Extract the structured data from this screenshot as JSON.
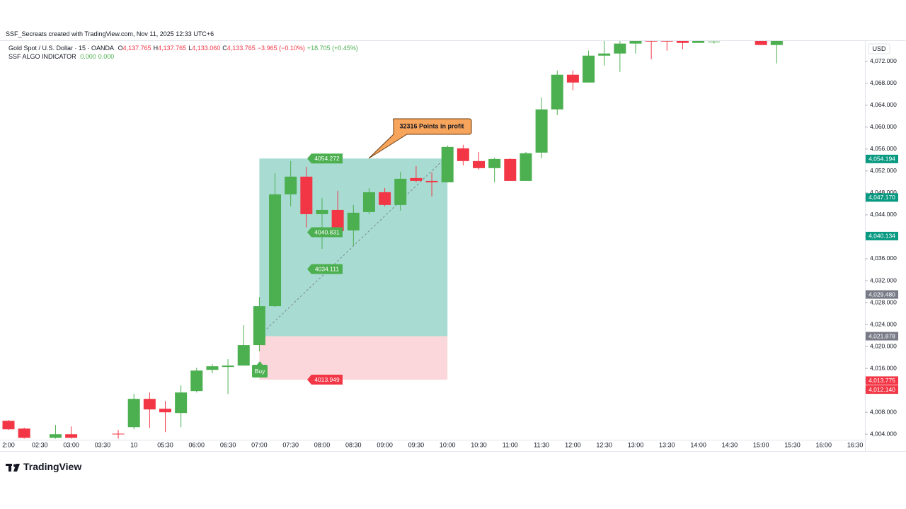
{
  "chart_data": {
    "type": "candlestick",
    "title": "SSF_Secreats created with TradingView.com, Nov 11, 2025 12:33 UTC+6",
    "legend": {
      "symbol": "Gold Spot / U.S. Dollar · 15 · OANDA",
      "ohlc": [
        {
          "label": "O",
          "value": "4,137.765"
        },
        {
          "label": "H",
          "value": "4,137.765"
        },
        {
          "label": "L",
          "value": "4,133.060"
        },
        {
          "label": "C",
          "value": "4,133.765"
        }
      ],
      "change": "−3.965 (−0.10%)",
      "change_day": "+18.705 (+0.45%)"
    },
    "indicator": {
      "name": "SSF ALGO INDICATOR",
      "values": [
        "0.000",
        "0.000"
      ]
    },
    "currency": "USD",
    "categories": [
      "2:00",
      null,
      "02:30",
      null,
      "03:00",
      null,
      "03:30",
      null,
      "10",
      null,
      "05:30",
      null,
      "06:00",
      null,
      "06:30",
      null,
      "07:00",
      null,
      "07:30",
      null,
      "08:00",
      null,
      "08:30",
      null,
      "09:00",
      null,
      "09:30",
      null,
      "10:00",
      null,
      "10:30",
      null,
      "11:00",
      null,
      "11:30",
      null,
      "12:00",
      null,
      "12:30",
      null,
      "13:00",
      null,
      "13:30",
      null,
      "14:00",
      null,
      "14:30",
      null,
      "15:00",
      null,
      "15:30",
      null,
      "16:00",
      null,
      "16:30"
    ],
    "open": [
      4006.45,
      4005.03,
      null,
      4003.35,
      4004.0,
      null,
      null,
      4004.1,
      4005.29,
      4010.45,
      4008.65,
      4007.87,
      4011.87,
      4015.74,
      4016.26,
      4016.52,
      4020.26,
      4027.35,
      4047.74,
      4050.97,
      4044.13,
      4044.9,
      4041.16,
      4044.52,
      4048.13,
      4045.81,
      4050.71,
      4050.19,
      4049.94,
      4056.13,
      4053.81,
      4052.52,
      4054.19,
      4050.19,
      4055.35,
      4063.23,
      4069.55,
      4068.13,
      4073.03,
      4073.42,
      4075.23,
      4076.0,
      4075.9,
      4075.74,
      4075.35,
      4075.6,
      null,
      null,
      4075.74,
      4074.97,
      null,
      null,
      null,
      null,
      null
    ],
    "high": [
      4006.6,
      4005.2,
      null,
      4005.68,
      4005.42,
      null,
      null,
      4004.77,
      4011.35,
      4011.61,
      4010.06,
      4012.9,
      4016.13,
      4016.77,
      4017.68,
      4023.87,
      4029.03,
      4051.61,
      4053.81,
      4052.77,
      4047.1,
      4048.39,
      4045.81,
      4048.9,
      4048.9,
      4051.87,
      4052.9,
      4051.74,
      4056.65,
      4056.77,
      4055.48,
      4054.45,
      4054.32,
      4055.48,
      4065.42,
      4070.32,
      4070.32,
      4073.94,
      4076.0,
      4075.74,
      4076.5,
      4076.5,
      4076.5,
      4076.5,
      4076.5,
      4076.0,
      null,
      null,
      4076.5,
      4076.5,
      null,
      null,
      null,
      null,
      null
    ],
    "low": [
      4004.8,
      4003.2,
      null,
      4003.2,
      4003.2,
      null,
      null,
      4003.2,
      4004.9,
      4005.16,
      4004.39,
      4005.29,
      4011.61,
      4015.1,
      4011.35,
      4016.52,
      4019.1,
      4027.23,
      4045.55,
      4041.68,
      4037.81,
      4040.65,
      4038.32,
      4044.13,
      4045.55,
      4044.77,
      4049.94,
      4047.35,
      4049.94,
      4053.03,
      4052.26,
      4049.94,
      4050.19,
      4050.19,
      4054.32,
      4062.19,
      4066.71,
      4068.13,
      4071.23,
      4070.06,
      4073.42,
      4072.39,
      4073.94,
      4074.19,
      4075.35,
      4075.23,
      null,
      null,
      4074.97,
      4071.61,
      null,
      null,
      null,
      null,
      null
    ],
    "close": [
      4004.9,
      4003.35,
      null,
      4004.0,
      4003.35,
      null,
      null,
      4004.0,
      4010.45,
      4008.52,
      4008.0,
      4011.61,
      4015.61,
      4016.39,
      4016.52,
      4020.26,
      4027.35,
      4047.74,
      4050.97,
      4044.13,
      4044.9,
      4041.03,
      4044.39,
      4048.13,
      4045.81,
      4050.58,
      4050.19,
      4049.94,
      4056.39,
      4053.81,
      4052.52,
      4054.19,
      4050.19,
      4055.23,
      4063.23,
      4069.55,
      4068.13,
      4073.03,
      4073.42,
      4075.23,
      4075.74,
      4075.6,
      4075.6,
      4075.35,
      4075.74,
      4075.6,
      null,
      null,
      4074.97,
      4075.74,
      null,
      null,
      null,
      null,
      null
    ],
    "up_color": "#4caf50",
    "down_color": "#f23645",
    "ylim": [
      4003,
      4075.7
    ],
    "yticks": [
      {
        "value": 4004,
        "label": "4,004.000"
      },
      {
        "value": 4008,
        "label": "4,008.000"
      },
      {
        "value": 4012,
        "label": "4,012.000"
      },
      {
        "value": 4016,
        "label": "4,016.000"
      },
      {
        "value": 4020,
        "label": "4,020.000"
      },
      {
        "value": 4024,
        "label": "4,024.000"
      },
      {
        "value": 4028,
        "label": "4,028.000"
      },
      {
        "value": 4032,
        "label": "4,032.000"
      },
      {
        "value": 4036,
        "label": "4,036.000"
      },
      {
        "value": 4040,
        "label": "4,040.000"
      },
      {
        "value": 4044,
        "label": "4,044.000"
      },
      {
        "value": 4048,
        "label": "4,048.000"
      },
      {
        "value": 4052,
        "label": "4,052.000"
      },
      {
        "value": 4056,
        "label": "4,056.000"
      },
      {
        "value": 4060,
        "label": "4,060.000"
      },
      {
        "value": 4064,
        "label": "4,064.000"
      },
      {
        "value": 4068,
        "label": "4,068.000"
      },
      {
        "value": 4072,
        "label": "4,072.000"
      }
    ],
    "grid": false,
    "price_labels": [
      {
        "value": 4054.194,
        "label": "4,054.194",
        "color": "#089981"
      },
      {
        "value": 4047.17,
        "label": "4,047.170",
        "color": "#089981"
      },
      {
        "value": 4040.134,
        "label": "4,040.134",
        "color": "#089981"
      },
      {
        "value": 4029.48,
        "label": "4,029.480",
        "color": "#787b86"
      },
      {
        "value": 4021.878,
        "label": "4,021.878",
        "color": "#787b86"
      },
      {
        "value": 4013.775,
        "label": "4,013.775",
        "color": "#f23645"
      },
      {
        "value": 4012.14,
        "label": "4,012.140",
        "color": "#f23645"
      }
    ],
    "position": {
      "target": 4054.272,
      "stop": 4013.949,
      "levels": [
        4040.831,
        4034.111
      ],
      "signal": "Buy",
      "note": "32316 Points in profit"
    },
    "brand": "TradingView"
  }
}
